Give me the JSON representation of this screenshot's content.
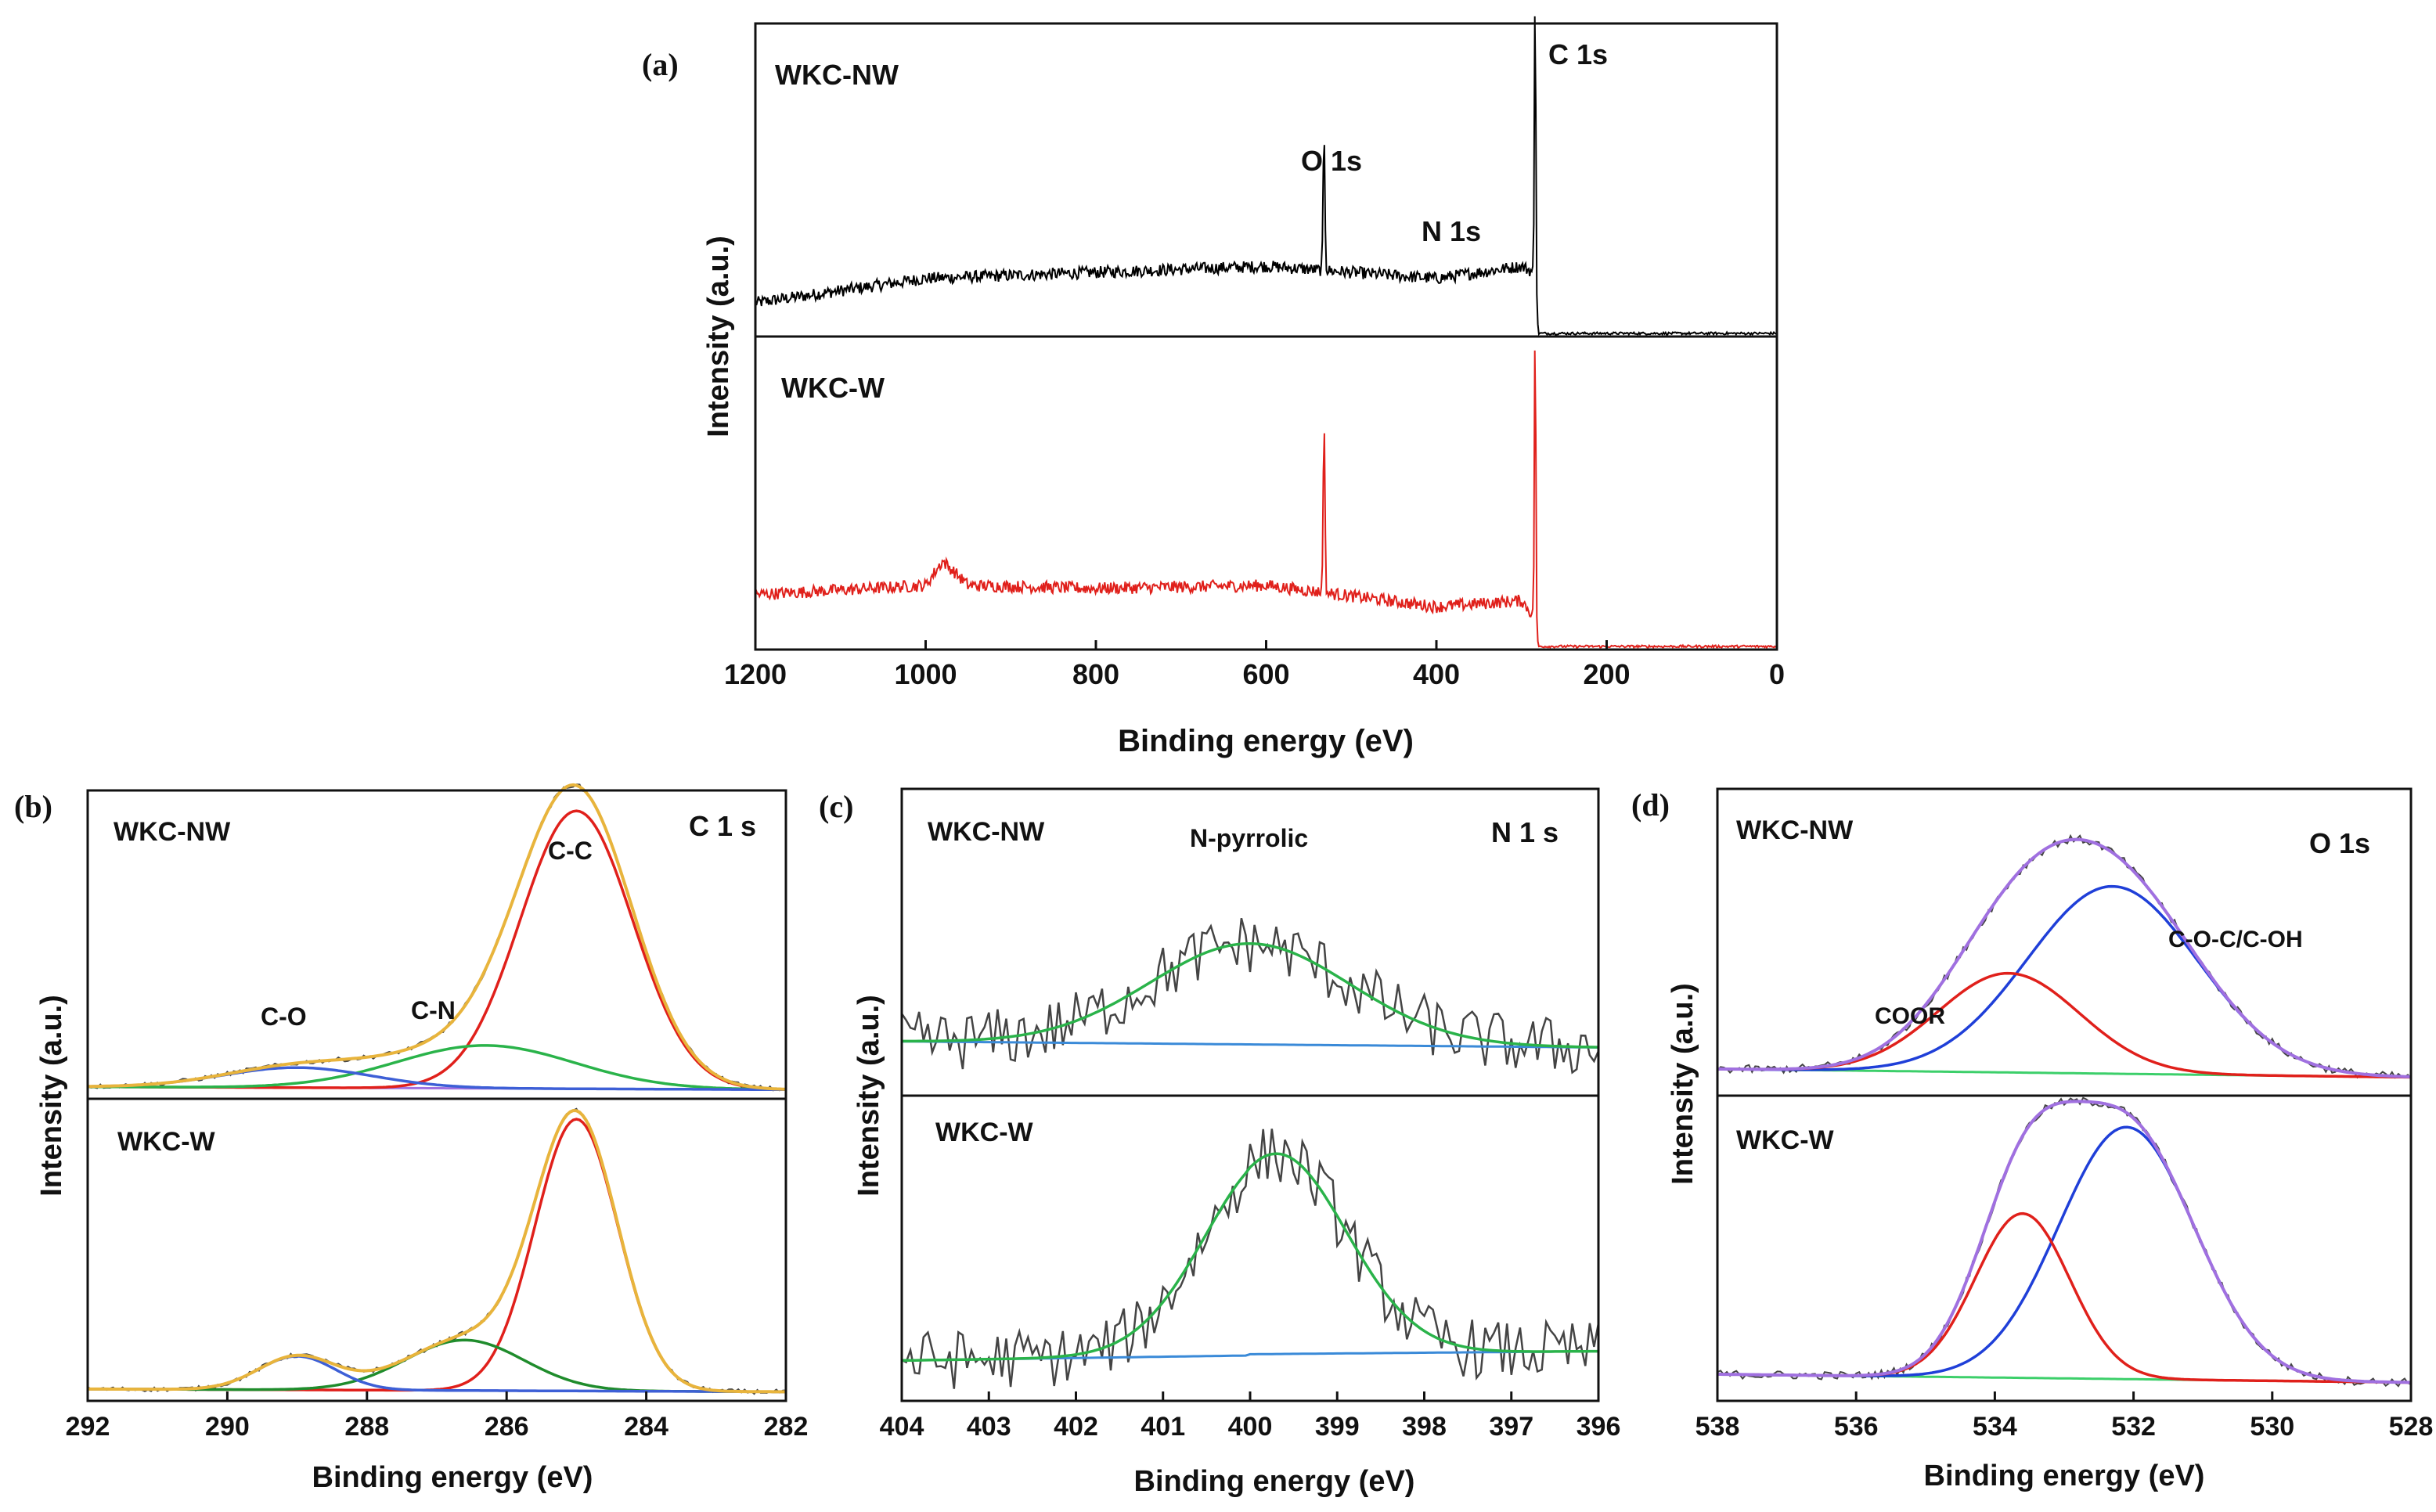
{
  "chart_data": [
    {
      "type": "line",
      "panel_label": "(a)",
      "title": "",
      "xlabel": "Binding energy (eV)",
      "ylabel": "Intensity (a.u.)",
      "xlim": [
        1200,
        0
      ],
      "x_ticks": [
        "1200",
        "1000",
        "800",
        "600",
        "400",
        "200",
        "0"
      ],
      "subplots": [
        {
          "sample": "WKC-NW",
          "color": "#000000",
          "annotations": [
            "C 1s",
            "O 1s",
            "N 1s"
          ],
          "peaks": [
            {
              "label": "C 1s",
              "x": 284,
              "rel": 1.0
            },
            {
              "label": "O 1s",
              "x": 532,
              "rel": 0.45
            },
            {
              "label": "N 1s",
              "x": 400,
              "rel": 0.0
            }
          ],
          "background": [
            [
              1200,
              0.1
            ],
            [
              1000,
              0.18
            ],
            [
              800,
              0.2
            ],
            [
              600,
              0.22
            ],
            [
              400,
              0.18
            ],
            [
              300,
              0.22
            ],
            [
              286,
              0.2
            ],
            [
              280,
              0.0
            ],
            [
              0,
              0.0
            ]
          ]
        },
        {
          "sample": "WKC-W",
          "color": "#e0201b",
          "annotations": [],
          "peaks": [
            {
              "label": "C 1s",
              "x": 284,
              "rel": 1.0
            },
            {
              "label": "O 1s",
              "x": 532,
              "rel": 0.55
            }
          ],
          "background": [
            [
              1200,
              0.17
            ],
            [
              1000,
              0.2
            ],
            [
              980,
              0.28
            ],
            [
              950,
              0.2
            ],
            [
              800,
              0.19
            ],
            [
              600,
              0.2
            ],
            [
              400,
              0.13
            ],
            [
              300,
              0.15
            ],
            [
              286,
              0.1
            ],
            [
              280,
              0.0
            ],
            [
              0,
              0.0
            ]
          ]
        }
      ]
    },
    {
      "type": "line",
      "panel_label": "(b)",
      "title": "C 1 s",
      "xlabel": "Binding energy (eV)",
      "ylabel": "Intensity (a.u.)",
      "xlim": [
        292,
        282
      ],
      "x_ticks": [
        "292",
        "290",
        "288",
        "286",
        "284",
        "282"
      ],
      "subplots": [
        {
          "sample": "WKC-NW",
          "components": [
            {
              "name": "C-C",
              "center": 285.0,
              "fwhm": 1.9,
              "height": 0.97,
              "color": "#e0201b"
            },
            {
              "name": "C-N",
              "center": 286.3,
              "fwhm": 3.0,
              "height": 0.15,
              "color": "#2ab34a"
            },
            {
              "name": "C-O",
              "center": 289.0,
              "fwhm": 2.5,
              "height": 0.07,
              "color": "#3d5fd6"
            }
          ],
          "annotations": [
            "C-C",
            "C-N",
            "C-O"
          ]
        },
        {
          "sample": "WKC-W",
          "components": [
            {
              "name": "C-C",
              "center": 285.0,
              "fwhm": 1.4,
              "height": 0.97,
              "color": "#e0201b"
            },
            {
              "name": "C-N",
              "center": 286.6,
              "fwhm": 2.0,
              "height": 0.18,
              "color": "#1f8c2c"
            },
            {
              "name": "C-O",
              "center": 289.0,
              "fwhm": 1.3,
              "height": 0.12,
              "color": "#3d5fd6"
            }
          ],
          "annotations": []
        }
      ]
    },
    {
      "type": "line",
      "panel_label": "(c)",
      "title": "N 1 s",
      "xlabel": "Binding energy (eV)",
      "ylabel": "Intensity (a.u.)",
      "xlim": [
        404,
        396
      ],
      "x_ticks": [
        "404",
        "403",
        "402",
        "401",
        "400",
        "399",
        "398",
        "397",
        "396"
      ],
      "subplots": [
        {
          "sample": "WKC-NW",
          "components": [
            {
              "name": "N-pyrrolic",
              "center": 400.0,
              "fwhm": 2.7,
              "height": 0.4,
              "color": "#2ab34a"
            }
          ],
          "annotations": [
            "N-pyrrolic"
          ]
        },
        {
          "sample": "WKC-W",
          "components": [
            {
              "name": "N-pyrrolic",
              "center": 399.7,
              "fwhm": 1.9,
              "height": 0.8,
              "color": "#2ab34a"
            }
          ],
          "annotations": []
        }
      ]
    },
    {
      "type": "line",
      "panel_label": "(d)",
      "title": "O 1s",
      "xlabel": "Binding energy (eV)",
      "ylabel": "Intensity (a.u.)",
      "xlim": [
        538,
        528
      ],
      "x_ticks": [
        "538",
        "536",
        "534",
        "532",
        "530",
        "528"
      ],
      "subplots": [
        {
          "sample": "WKC-NW",
          "components": [
            {
              "name": "C-O-C/C-OH",
              "center": 532.3,
              "fwhm": 2.9,
              "height": 0.68,
              "color": "#1f3fd8"
            },
            {
              "name": "COOR",
              "center": 533.8,
              "fwhm": 2.4,
              "height": 0.36,
              "color": "#e0201b"
            }
          ],
          "annotations": [
            "COOR",
            "C-O-C/C-OH"
          ]
        },
        {
          "sample": "WKC-W",
          "components": [
            {
              "name": "C-O-C/C-OH",
              "center": 532.1,
              "fwhm": 2.3,
              "height": 0.92,
              "color": "#1f3fd8"
            },
            {
              "name": "COOR",
              "center": 533.6,
              "fwhm": 1.6,
              "height": 0.6,
              "color": "#e0201b"
            }
          ],
          "annotations": []
        }
      ]
    }
  ]
}
